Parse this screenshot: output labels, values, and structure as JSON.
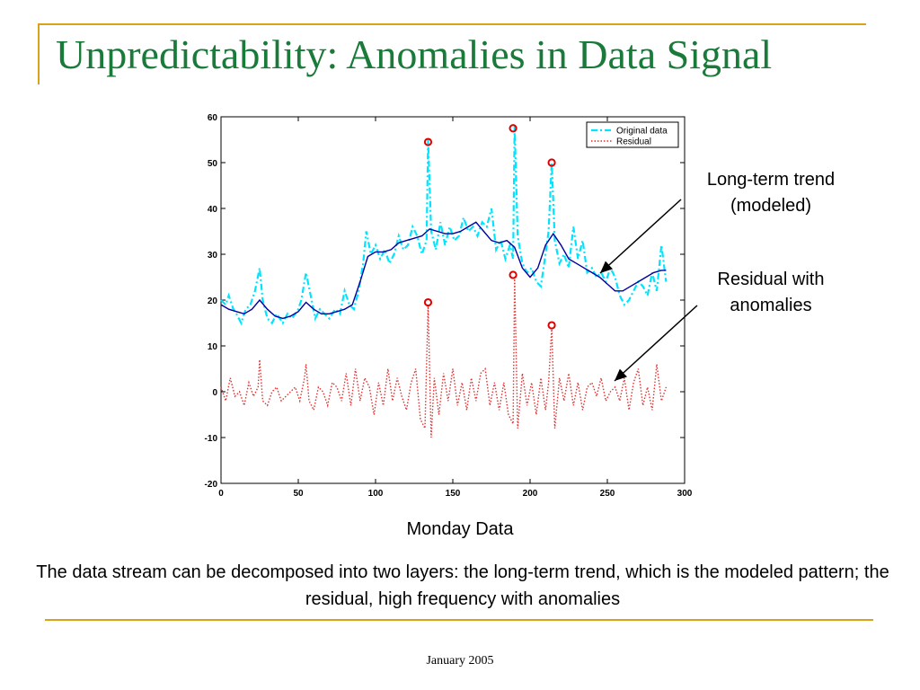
{
  "slide": {
    "title": "Unpredictability: Anomalies in Data Signal",
    "annotation_trend": "Long-term trend\n(modeled)",
    "annotation_residual": "Residual with\nanomalies",
    "caption": "Monday Data",
    "description": "The data stream can be decomposed into two layers: the long-term trend, which is the modeled pattern; the residual, high frequency with anomalies",
    "footer": "January 2005",
    "accent_color": "#d9a21b",
    "title_color": "#1a7a3a"
  },
  "chart_data": {
    "type": "line",
    "xlim": [
      0,
      300
    ],
    "ylim": [
      -20,
      60
    ],
    "x_ticks": [
      0,
      50,
      100,
      150,
      200,
      250,
      300
    ],
    "y_ticks": [
      -20,
      -10,
      0,
      10,
      20,
      30,
      40,
      50,
      60
    ],
    "legend_position": "top-right",
    "grid": false,
    "series": [
      {
        "name": "Original data",
        "color": "#00e5ff",
        "style": "dash-dot",
        "x": [
          0,
          3,
          5,
          8,
          10,
          13,
          16,
          19,
          22,
          25,
          27,
          30,
          33,
          36,
          40,
          43,
          46,
          50,
          52,
          55,
          58,
          61,
          64,
          67,
          70,
          74,
          77,
          80,
          83,
          86,
          89,
          92,
          94,
          97,
          100,
          103,
          106,
          109,
          112,
          115,
          118,
          121,
          124,
          127,
          130,
          133,
          134,
          136,
          139,
          142,
          145,
          148,
          151,
          154,
          157,
          160,
          163,
          166,
          169,
          172,
          175,
          178,
          181,
          184,
          187,
          189,
          190,
          192,
          195,
          198,
          201,
          204,
          207,
          210,
          212,
          214,
          216,
          219,
          222,
          225,
          228,
          231,
          234,
          237,
          240,
          243,
          246,
          249,
          252,
          255,
          258,
          261,
          264,
          267,
          270,
          273,
          276,
          279,
          282,
          285,
          288
        ],
        "values": [
          20,
          19,
          21,
          18,
          17,
          15,
          18,
          19,
          22,
          27,
          20,
          16,
          15,
          17,
          15,
          17,
          16,
          18,
          20,
          26,
          21,
          16,
          18,
          17,
          16,
          18,
          17,
          22,
          19,
          18,
          22,
          28,
          35,
          30,
          32,
          29,
          31,
          28,
          30,
          34,
          31,
          32,
          36,
          34,
          30,
          33,
          55,
          35,
          31,
          37,
          32,
          36,
          33,
          34,
          38,
          35,
          36,
          34,
          37,
          36,
          40,
          31,
          33,
          29,
          32,
          29,
          58,
          34,
          28,
          26,
          27,
          24,
          23,
          30,
          35,
          50,
          33,
          28,
          30,
          27,
          36,
          29,
          33,
          26,
          27,
          25,
          26,
          24,
          27,
          25,
          21,
          19,
          20,
          22,
          24,
          23,
          21,
          26,
          22,
          32,
          24
        ]
      },
      {
        "name": "",
        "color": "#0000a0",
        "style": "solid",
        "x": [
          0,
          5,
          10,
          15,
          20,
          25,
          30,
          35,
          40,
          45,
          50,
          55,
          60,
          65,
          70,
          75,
          80,
          85,
          90,
          95,
          100,
          105,
          110,
          115,
          120,
          125,
          130,
          135,
          140,
          145,
          150,
          155,
          160,
          165,
          170,
          175,
          180,
          185,
          190,
          195,
          200,
          205,
          210,
          215,
          220,
          225,
          230,
          235,
          240,
          245,
          250,
          255,
          260,
          265,
          270,
          275,
          280,
          285,
          288
        ],
        "values": [
          19,
          18,
          17.5,
          17,
          18,
          20,
          18,
          16.5,
          16,
          16.5,
          17.5,
          19.5,
          18,
          17,
          17,
          17.5,
          18,
          19,
          24,
          29.5,
          30.5,
          30.5,
          31,
          32.5,
          33,
          33.5,
          34,
          35.5,
          35,
          34.5,
          34.5,
          35,
          36,
          37,
          35,
          33,
          32.5,
          33,
          31.5,
          27,
          25,
          27,
          32,
          34.5,
          32,
          29,
          28,
          27,
          26,
          25,
          23.5,
          22,
          22,
          23,
          24,
          25,
          26,
          26.5,
          26.5
        ]
      },
      {
        "name": "Residual",
        "color": "#e03030",
        "style": "dotted",
        "x": [
          0,
          3,
          6,
          9,
          12,
          15,
          18,
          21,
          24,
          25,
          27,
          30,
          33,
          36,
          39,
          42,
          45,
          48,
          51,
          54,
          55,
          57,
          60,
          63,
          66,
          69,
          72,
          75,
          78,
          81,
          84,
          87,
          90,
          93,
          96,
          99,
          102,
          105,
          108,
          111,
          114,
          117,
          120,
          123,
          126,
          129,
          132,
          134,
          136,
          138,
          141,
          144,
          147,
          150,
          153,
          156,
          159,
          162,
          165,
          168,
          171,
          174,
          177,
          180,
          183,
          186,
          189,
          190,
          192,
          195,
          198,
          201,
          204,
          207,
          210,
          212,
          214,
          216,
          219,
          222,
          225,
          228,
          231,
          234,
          237,
          240,
          243,
          246,
          249,
          252,
          255,
          258,
          261,
          264,
          267,
          270,
          273,
          276,
          279,
          282,
          285,
          288
        ],
        "values": [
          1,
          -2,
          3,
          -1,
          0,
          -3,
          2,
          -1,
          1,
          7,
          -2,
          -3,
          0,
          1,
          -2,
          -1,
          0,
          1,
          -2,
          3,
          6,
          -2,
          -4,
          1,
          0,
          -3,
          2,
          1,
          -2,
          4,
          -3,
          5,
          -2,
          3,
          1,
          -5,
          2,
          -3,
          5,
          -2,
          3,
          -1,
          -4,
          2,
          5,
          -6,
          -8,
          19,
          -10,
          3,
          -5,
          4,
          -2,
          5,
          -3,
          2,
          -4,
          3,
          -2,
          4,
          5,
          -3,
          2,
          -4,
          2,
          -5,
          -7,
          25,
          -8,
          4,
          -3,
          2,
          -5,
          3,
          -4,
          2,
          14,
          -8,
          3,
          -2,
          4,
          -3,
          2,
          -4,
          1,
          2,
          -1,
          3,
          -2,
          0,
          1,
          -2,
          3,
          -4,
          2,
          5,
          -3,
          1,
          -4,
          6,
          -2,
          1
        ]
      }
    ],
    "anomaly_markers": [
      {
        "x": 134,
        "y": 54.5
      },
      {
        "x": 189,
        "y": 57.5
      },
      {
        "x": 214,
        "y": 50
      },
      {
        "x": 134,
        "y": 19.5
      },
      {
        "x": 189,
        "y": 25.5
      },
      {
        "x": 214,
        "y": 14.5
      }
    ]
  }
}
